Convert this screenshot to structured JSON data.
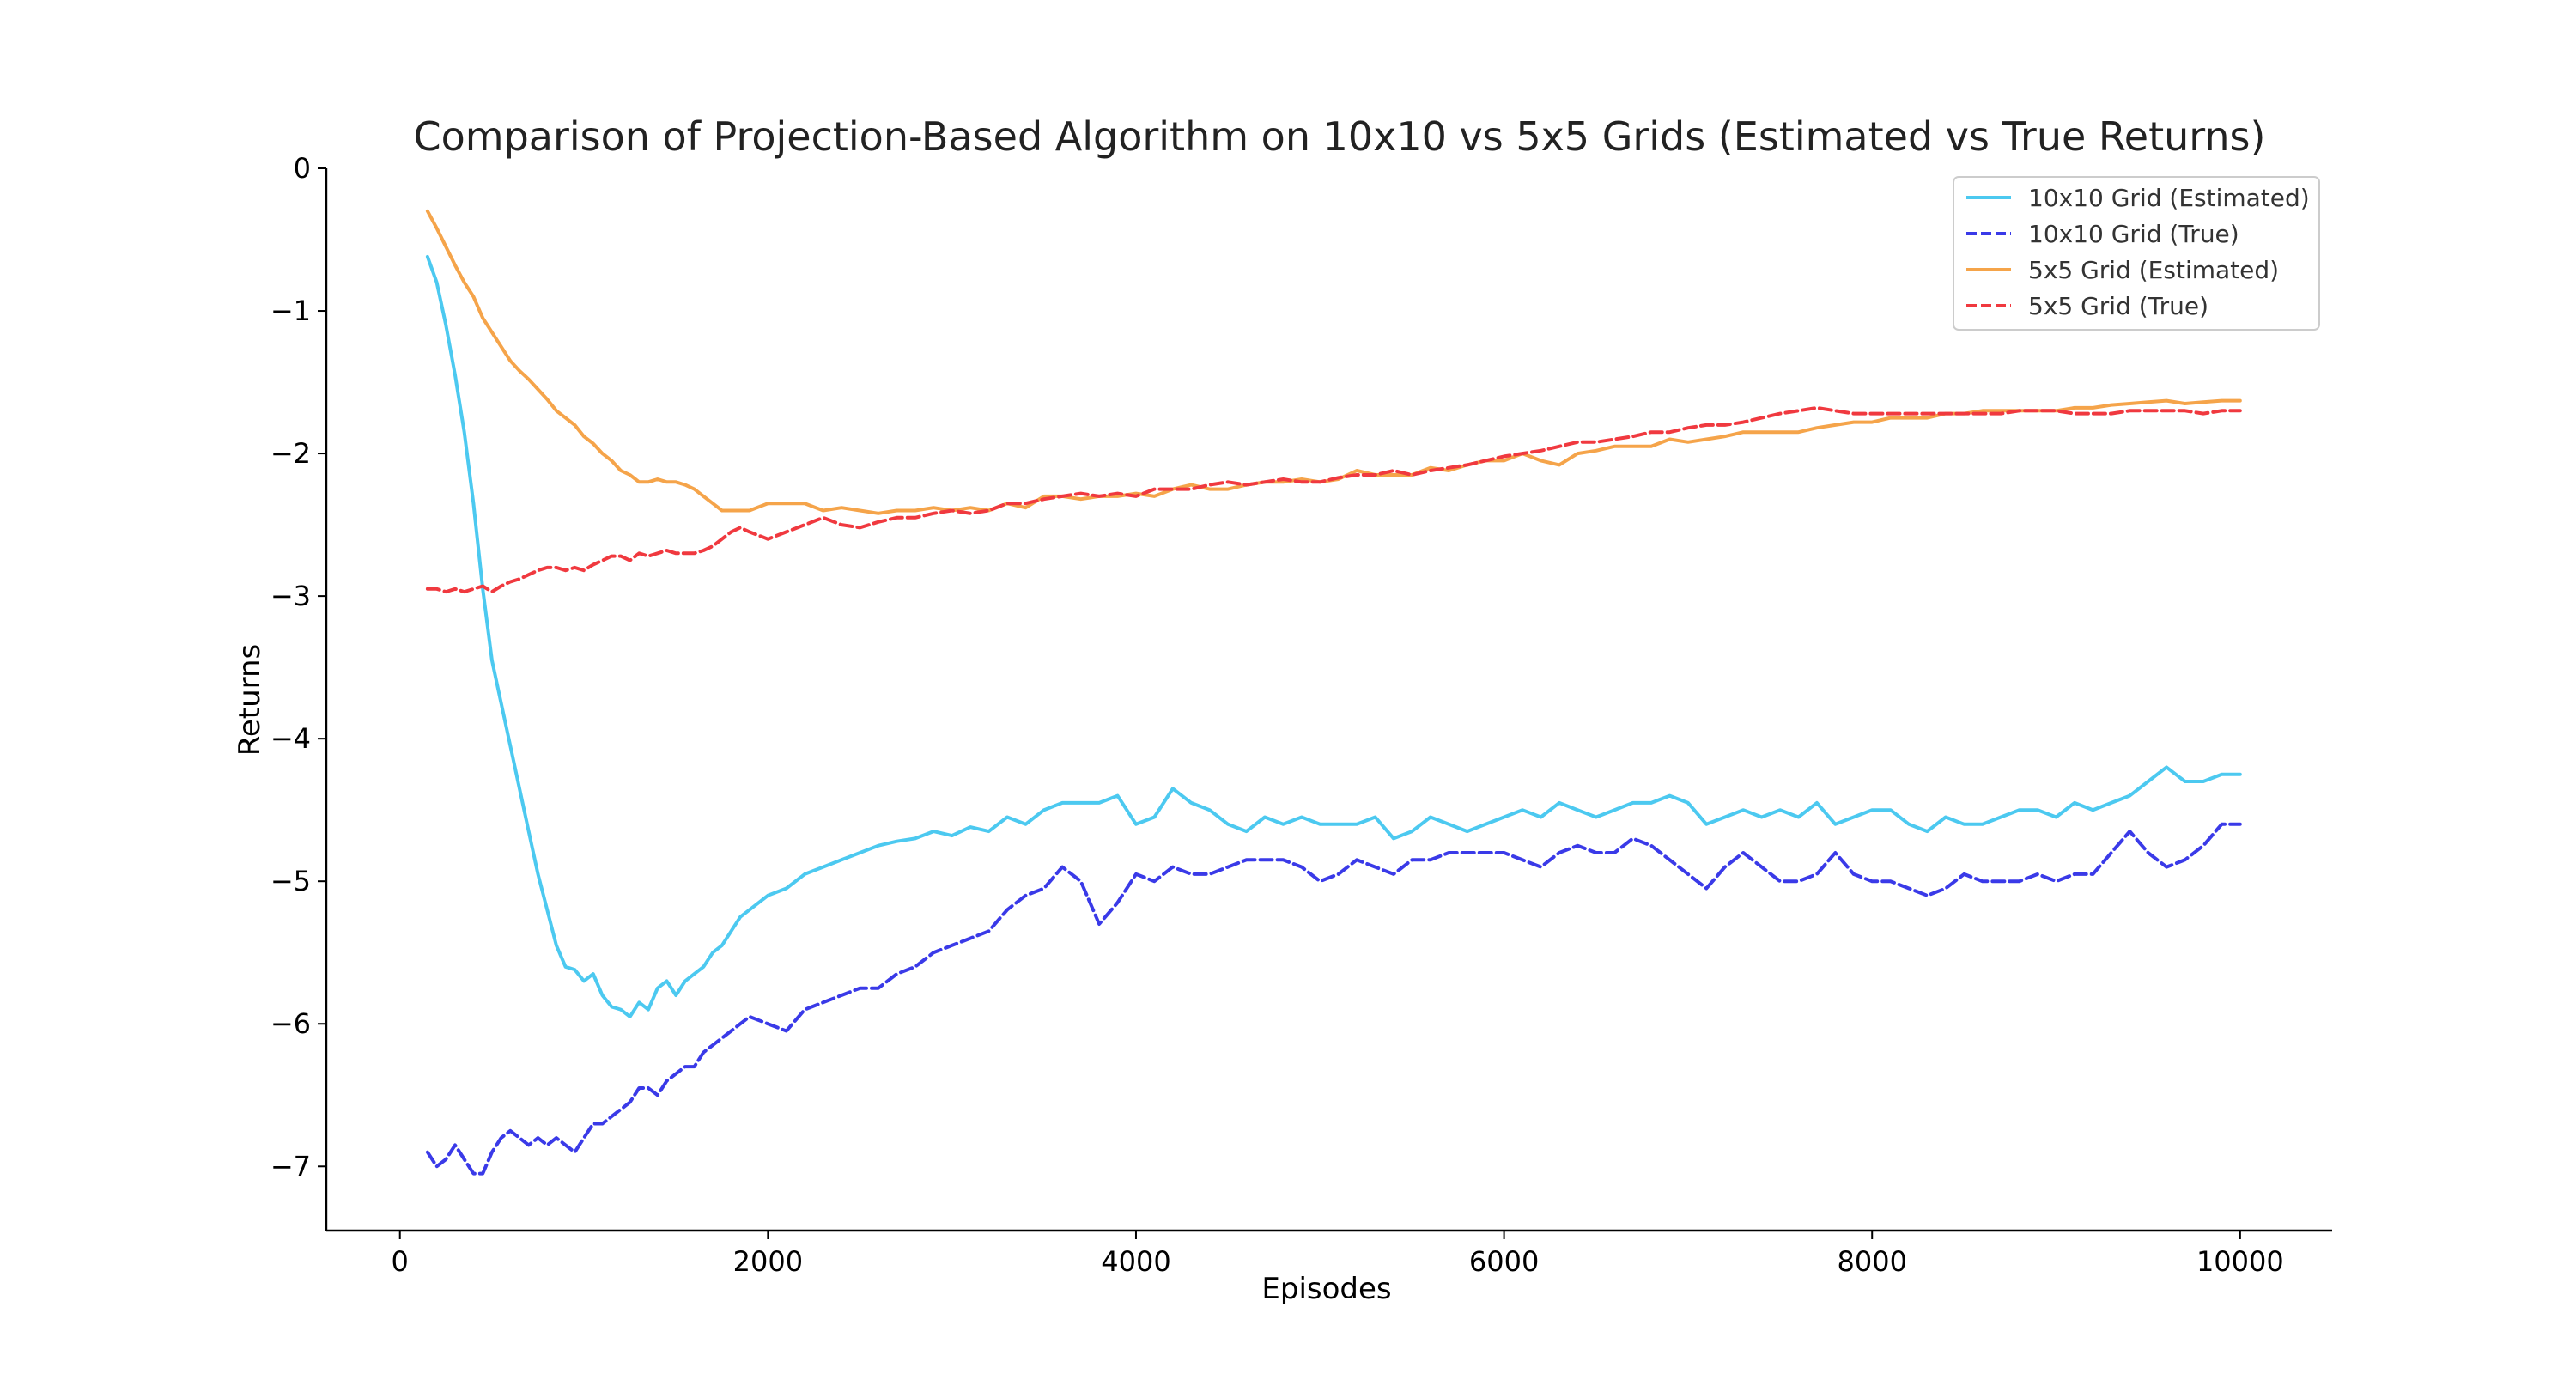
{
  "chart_data": {
    "type": "line",
    "title": "Comparison of Projection-Based Algorithm on 10x10 vs 5x5 Grids (Estimated vs True Returns)",
    "xlabel": "Episodes",
    "ylabel": "Returns",
    "xlim": [
      -400,
      10500
    ],
    "ylim": [
      -7.45,
      0
    ],
    "xticks": [
      0,
      2000,
      4000,
      6000,
      8000,
      10000
    ],
    "yticks": [
      0,
      -1,
      -2,
      -3,
      -4,
      -5,
      -6,
      -7
    ],
    "xtick_labels": [
      "0",
      "2000",
      "4000",
      "6000",
      "8000",
      "10000"
    ],
    "ytick_labels": [
      "0",
      "−1",
      "−2",
      "−3",
      "−4",
      "−5",
      "−6",
      "−7"
    ],
    "grid": false,
    "legend_position": "top-right",
    "series": [
      {
        "name": "10x10 Grid (Estimated)",
        "color": "#4cc9f0",
        "dash": "solid",
        "x": [
          150,
          200,
          250,
          300,
          350,
          400,
          450,
          500,
          550,
          600,
          650,
          700,
          750,
          800,
          850,
          900,
          950,
          1000,
          1050,
          1100,
          1150,
          1200,
          1250,
          1300,
          1350,
          1400,
          1450,
          1500,
          1550,
          1600,
          1650,
          1700,
          1750,
          1800,
          1850,
          1900,
          2000,
          2100,
          2200,
          2300,
          2400,
          2500,
          2600,
          2700,
          2800,
          2900,
          3000,
          3100,
          3200,
          3300,
          3400,
          3500,
          3600,
          3700,
          3800,
          3900,
          4000,
          4100,
          4200,
          4300,
          4400,
          4500,
          4600,
          4700,
          4800,
          4900,
          5000,
          5100,
          5200,
          5300,
          5400,
          5500,
          5600,
          5700,
          5800,
          5900,
          6000,
          6100,
          6200,
          6300,
          6400,
          6500,
          6600,
          6700,
          6800,
          6900,
          7000,
          7100,
          7200,
          7300,
          7400,
          7500,
          7600,
          7700,
          7800,
          7900,
          8000,
          8100,
          8200,
          8300,
          8400,
          8500,
          8600,
          8700,
          8800,
          8900,
          9000,
          9100,
          9200,
          9300,
          9400,
          9500,
          9600,
          9700,
          9800,
          9900,
          10000
        ],
        "y": [
          -0.62,
          -0.8,
          -1.1,
          -1.45,
          -1.85,
          -2.35,
          -2.95,
          -3.45,
          -3.75,
          -4.05,
          -4.35,
          -4.65,
          -4.95,
          -5.2,
          -5.45,
          -5.6,
          -5.62,
          -5.7,
          -5.65,
          -5.8,
          -5.88,
          -5.9,
          -5.95,
          -5.85,
          -5.9,
          -5.75,
          -5.7,
          -5.8,
          -5.7,
          -5.65,
          -5.6,
          -5.5,
          -5.45,
          -5.35,
          -5.25,
          -5.2,
          -5.1,
          -5.05,
          -4.95,
          -4.9,
          -4.85,
          -4.8,
          -4.75,
          -4.72,
          -4.7,
          -4.65,
          -4.68,
          -4.62,
          -4.65,
          -4.55,
          -4.6,
          -4.5,
          -4.45,
          -4.45,
          -4.45,
          -4.4,
          -4.6,
          -4.55,
          -4.35,
          -4.45,
          -4.5,
          -4.6,
          -4.65,
          -4.55,
          -4.6,
          -4.55,
          -4.6,
          -4.6,
          -4.6,
          -4.55,
          -4.7,
          -4.65,
          -4.55,
          -4.6,
          -4.65,
          -4.6,
          -4.55,
          -4.5,
          -4.55,
          -4.45,
          -4.5,
          -4.55,
          -4.5,
          -4.45,
          -4.45,
          -4.4,
          -4.45,
          -4.6,
          -4.55,
          -4.5,
          -4.55,
          -4.5,
          -4.55,
          -4.45,
          -4.6,
          -4.55,
          -4.5,
          -4.5,
          -4.6,
          -4.65,
          -4.55,
          -4.6,
          -4.6,
          -4.55,
          -4.5,
          -4.5,
          -4.55,
          -4.45,
          -4.5,
          -4.45,
          -4.4,
          -4.3,
          -4.2,
          -4.3,
          -4.3,
          -4.25,
          -4.25
        ]
      },
      {
        "name": "10x10 Grid (True)",
        "color": "#3a3ae8",
        "dash": "dashed",
        "x": [
          150,
          200,
          250,
          300,
          350,
          400,
          450,
          500,
          550,
          600,
          650,
          700,
          750,
          800,
          850,
          900,
          950,
          1000,
          1050,
          1100,
          1150,
          1200,
          1250,
          1300,
          1350,
          1400,
          1450,
          1500,
          1550,
          1600,
          1650,
          1700,
          1750,
          1800,
          1850,
          1900,
          2000,
          2100,
          2200,
          2300,
          2400,
          2500,
          2600,
          2700,
          2800,
          2900,
          3000,
          3100,
          3200,
          3300,
          3400,
          3500,
          3600,
          3700,
          3800,
          3900,
          4000,
          4100,
          4200,
          4300,
          4400,
          4500,
          4600,
          4700,
          4800,
          4900,
          5000,
          5100,
          5200,
          5300,
          5400,
          5500,
          5600,
          5700,
          5800,
          5900,
          6000,
          6100,
          6200,
          6300,
          6400,
          6500,
          6600,
          6700,
          6800,
          6900,
          7000,
          7100,
          7200,
          7300,
          7400,
          7500,
          7600,
          7700,
          7800,
          7900,
          8000,
          8100,
          8200,
          8300,
          8400,
          8500,
          8600,
          8700,
          8800,
          8900,
          9000,
          9100,
          9200,
          9300,
          9400,
          9500,
          9600,
          9700,
          9800,
          9900,
          10000
        ],
        "y": [
          -6.9,
          -7.0,
          -6.95,
          -6.85,
          -6.95,
          -7.05,
          -7.05,
          -6.9,
          -6.8,
          -6.75,
          -6.8,
          -6.85,
          -6.8,
          -6.85,
          -6.8,
          -6.85,
          -6.9,
          -6.8,
          -6.7,
          -6.7,
          -6.65,
          -6.6,
          -6.55,
          -6.45,
          -6.45,
          -6.5,
          -6.4,
          -6.35,
          -6.3,
          -6.3,
          -6.2,
          -6.15,
          -6.1,
          -6.05,
          -6.0,
          -5.95,
          -6.0,
          -6.05,
          -5.9,
          -5.85,
          -5.8,
          -5.75,
          -5.75,
          -5.65,
          -5.6,
          -5.5,
          -5.45,
          -5.4,
          -5.35,
          -5.2,
          -5.1,
          -5.05,
          -4.9,
          -5.0,
          -5.3,
          -5.15,
          -4.95,
          -5.0,
          -4.9,
          -4.95,
          -4.95,
          -4.9,
          -4.85,
          -4.85,
          -4.85,
          -4.9,
          -5.0,
          -4.95,
          -4.85,
          -4.9,
          -4.95,
          -4.85,
          -4.85,
          -4.8,
          -4.8,
          -4.8,
          -4.8,
          -4.85,
          -4.9,
          -4.8,
          -4.75,
          -4.8,
          -4.8,
          -4.7,
          -4.75,
          -4.85,
          -4.95,
          -5.05,
          -4.9,
          -4.8,
          -4.9,
          -5.0,
          -5.0,
          -4.95,
          -4.8,
          -4.95,
          -5.0,
          -5.0,
          -5.05,
          -5.1,
          -5.05,
          -4.95,
          -5.0,
          -5.0,
          -5.0,
          -4.95,
          -5.0,
          -4.95,
          -4.95,
          -4.8,
          -4.65,
          -4.8,
          -4.9,
          -4.85,
          -4.75,
          -4.6,
          -4.6
        ]
      },
      {
        "name": "5x5 Grid (Estimated)",
        "color": "#f5a44a",
        "dash": "solid",
        "x": [
          150,
          200,
          250,
          300,
          350,
          400,
          450,
          500,
          550,
          600,
          650,
          700,
          750,
          800,
          850,
          900,
          950,
          1000,
          1050,
          1100,
          1150,
          1200,
          1250,
          1300,
          1350,
          1400,
          1450,
          1500,
          1550,
          1600,
          1650,
          1700,
          1750,
          1800,
          1850,
          1900,
          2000,
          2100,
          2200,
          2300,
          2400,
          2500,
          2600,
          2700,
          2800,
          2900,
          3000,
          3100,
          3200,
          3300,
          3400,
          3500,
          3600,
          3700,
          3800,
          3900,
          4000,
          4100,
          4200,
          4300,
          4400,
          4500,
          4600,
          4700,
          4800,
          4900,
          5000,
          5100,
          5200,
          5300,
          5400,
          5500,
          5600,
          5700,
          5800,
          5900,
          6000,
          6100,
          6200,
          6300,
          6400,
          6500,
          6600,
          6700,
          6800,
          6900,
          7000,
          7100,
          7200,
          7300,
          7400,
          7500,
          7600,
          7700,
          7800,
          7900,
          8000,
          8100,
          8200,
          8300,
          8400,
          8500,
          8600,
          8700,
          8800,
          8900,
          9000,
          9100,
          9200,
          9300,
          9400,
          9500,
          9600,
          9700,
          9800,
          9900,
          10000
        ],
        "y": [
          -0.3,
          -0.42,
          -0.55,
          -0.68,
          -0.8,
          -0.9,
          -1.05,
          -1.15,
          -1.25,
          -1.35,
          -1.42,
          -1.48,
          -1.55,
          -1.62,
          -1.7,
          -1.75,
          -1.8,
          -1.88,
          -1.93,
          -2.0,
          -2.05,
          -2.12,
          -2.15,
          -2.2,
          -2.2,
          -2.18,
          -2.2,
          -2.2,
          -2.22,
          -2.25,
          -2.3,
          -2.35,
          -2.4,
          -2.4,
          -2.4,
          -2.4,
          -2.35,
          -2.35,
          -2.35,
          -2.4,
          -2.38,
          -2.4,
          -2.42,
          -2.4,
          -2.4,
          -2.38,
          -2.4,
          -2.38,
          -2.4,
          -2.35,
          -2.38,
          -2.3,
          -2.3,
          -2.32,
          -2.3,
          -2.3,
          -2.28,
          -2.3,
          -2.25,
          -2.22,
          -2.25,
          -2.25,
          -2.22,
          -2.2,
          -2.2,
          -2.18,
          -2.2,
          -2.18,
          -2.12,
          -2.15,
          -2.15,
          -2.15,
          -2.1,
          -2.12,
          -2.08,
          -2.05,
          -2.05,
          -2.0,
          -2.05,
          -2.08,
          -2.0,
          -1.98,
          -1.95,
          -1.95,
          -1.95,
          -1.9,
          -1.92,
          -1.9,
          -1.88,
          -1.85,
          -1.85,
          -1.85,
          -1.85,
          -1.82,
          -1.8,
          -1.78,
          -1.78,
          -1.75,
          -1.75,
          -1.75,
          -1.72,
          -1.72,
          -1.7,
          -1.7,
          -1.7,
          -1.7,
          -1.7,
          -1.68,
          -1.68,
          -1.66,
          -1.65,
          -1.64,
          -1.63,
          -1.65,
          -1.64,
          -1.63,
          -1.63
        ]
      },
      {
        "name": "5x5 Grid (True)",
        "color": "#f0393f",
        "dash": "dashed",
        "x": [
          150,
          200,
          250,
          300,
          350,
          400,
          450,
          500,
          550,
          600,
          650,
          700,
          750,
          800,
          850,
          900,
          950,
          1000,
          1050,
          1100,
          1150,
          1200,
          1250,
          1300,
          1350,
          1400,
          1450,
          1500,
          1550,
          1600,
          1650,
          1700,
          1750,
          1800,
          1850,
          1900,
          2000,
          2100,
          2200,
          2300,
          2400,
          2500,
          2600,
          2700,
          2800,
          2900,
          3000,
          3100,
          3200,
          3300,
          3400,
          3500,
          3600,
          3700,
          3800,
          3900,
          4000,
          4100,
          4200,
          4300,
          4400,
          4500,
          4600,
          4700,
          4800,
          4900,
          5000,
          5100,
          5200,
          5300,
          5400,
          5500,
          5600,
          5700,
          5800,
          5900,
          6000,
          6100,
          6200,
          6300,
          6400,
          6500,
          6600,
          6700,
          6800,
          6900,
          7000,
          7100,
          7200,
          7300,
          7400,
          7500,
          7600,
          7700,
          7800,
          7900,
          8000,
          8100,
          8200,
          8300,
          8400,
          8500,
          8600,
          8700,
          8800,
          8900,
          9000,
          9100,
          9200,
          9300,
          9400,
          9500,
          9600,
          9700,
          9800,
          9900,
          10000
        ],
        "y": [
          -2.95,
          -2.95,
          -2.97,
          -2.95,
          -2.97,
          -2.95,
          -2.93,
          -2.97,
          -2.93,
          -2.9,
          -2.88,
          -2.85,
          -2.82,
          -2.8,
          -2.8,
          -2.82,
          -2.8,
          -2.82,
          -2.78,
          -2.75,
          -2.72,
          -2.72,
          -2.75,
          -2.7,
          -2.72,
          -2.7,
          -2.68,
          -2.7,
          -2.7,
          -2.7,
          -2.68,
          -2.65,
          -2.6,
          -2.55,
          -2.52,
          -2.55,
          -2.6,
          -2.55,
          -2.5,
          -2.45,
          -2.5,
          -2.52,
          -2.48,
          -2.45,
          -2.45,
          -2.42,
          -2.4,
          -2.42,
          -2.4,
          -2.35,
          -2.35,
          -2.32,
          -2.3,
          -2.28,
          -2.3,
          -2.28,
          -2.3,
          -2.25,
          -2.25,
          -2.25,
          -2.22,
          -2.2,
          -2.22,
          -2.2,
          -2.18,
          -2.2,
          -2.2,
          -2.17,
          -2.15,
          -2.15,
          -2.12,
          -2.15,
          -2.12,
          -2.1,
          -2.08,
          -2.05,
          -2.02,
          -2.0,
          -1.98,
          -1.95,
          -1.92,
          -1.92,
          -1.9,
          -1.88,
          -1.85,
          -1.85,
          -1.82,
          -1.8,
          -1.8,
          -1.78,
          -1.75,
          -1.72,
          -1.7,
          -1.68,
          -1.7,
          -1.72,
          -1.72,
          -1.72,
          -1.72,
          -1.72,
          -1.72,
          -1.72,
          -1.72,
          -1.72,
          -1.7,
          -1.7,
          -1.7,
          -1.72,
          -1.72,
          -1.72,
          -1.7,
          -1.7,
          -1.7,
          -1.7,
          -1.72,
          -1.7,
          -1.7
        ]
      }
    ]
  }
}
